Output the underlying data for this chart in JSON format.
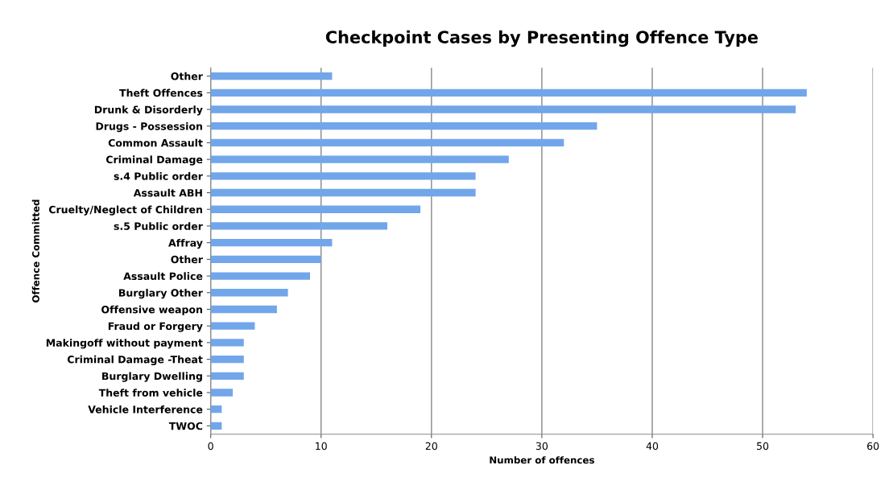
{
  "chart_data": {
    "type": "bar",
    "orientation": "horizontal",
    "title": "Checkpoint Cases by Presenting Offence Type",
    "xlabel": "Number of offences",
    "ylabel": "Offence Committed",
    "categories": [
      "Other",
      "Theft Offences",
      "Drunk & Disorderly",
      "Drugs - Possession",
      "Common Assault",
      "Criminal Damage",
      "s.4 Public order",
      "Assault ABH",
      "Cruelty/Neglect of Children",
      "s.5 Public order",
      "Affray",
      "Other",
      "Assault Police",
      "Burglary Other",
      "Offensive weapon",
      "Fraud or Forgery",
      "Makingoff without payment",
      "Criminal Damage -Theat",
      "Burglary Dwelling",
      "Theft from vehicle",
      "Vehicle Interference",
      "TWOC"
    ],
    "values": [
      11,
      54,
      53,
      35,
      32,
      27,
      24,
      24,
      19,
      16,
      11,
      10,
      9,
      7,
      6,
      4,
      3,
      3,
      3,
      2,
      1,
      1
    ],
    "color": "#72a6ea",
    "xlim": [
      0,
      60
    ],
    "xticks": [
      0,
      10,
      20,
      30,
      40,
      50,
      60
    ],
    "grid": "x"
  }
}
